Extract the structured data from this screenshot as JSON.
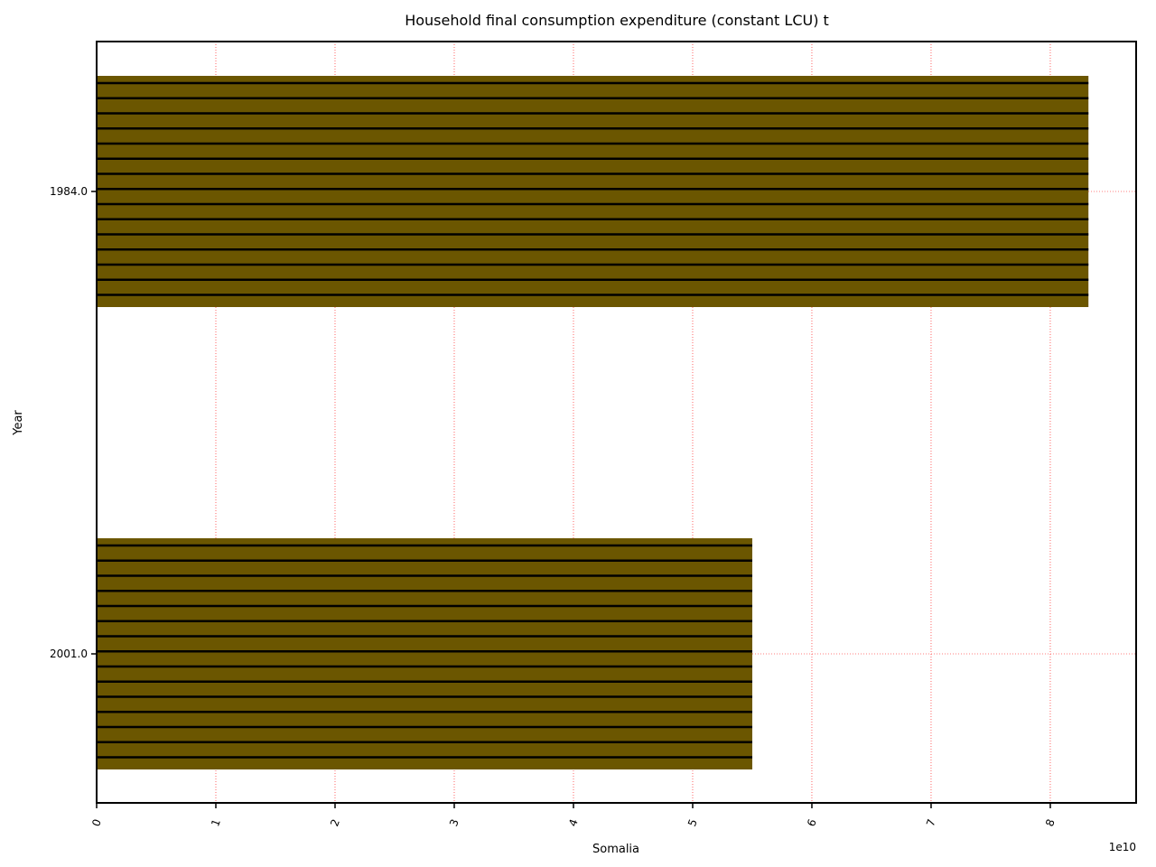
{
  "chart_data": {
    "type": "bar",
    "orientation": "horizontal",
    "title": "Household final consumption expenditure (constant LCU) t",
    "xlabel": "Somalia",
    "ylabel": "Year",
    "x_offset_label": "1e10",
    "xlim": [
      0,
      8.72
    ],
    "x_ticks": [
      0,
      1,
      2,
      3,
      4,
      5,
      6,
      7,
      8
    ],
    "x_tick_labels": [
      "0",
      "1",
      "2",
      "3",
      "4",
      "5",
      "6",
      "7",
      "8"
    ],
    "categories": [
      "1984.0",
      "2001.0"
    ],
    "values": [
      8.32,
      5.5
    ],
    "value_scale": "1e10",
    "grid": true,
    "grid_color": "#ff0000",
    "bar_color": "#6b5600",
    "hatch": "horizontal lines",
    "hatch_color": "#000000"
  }
}
